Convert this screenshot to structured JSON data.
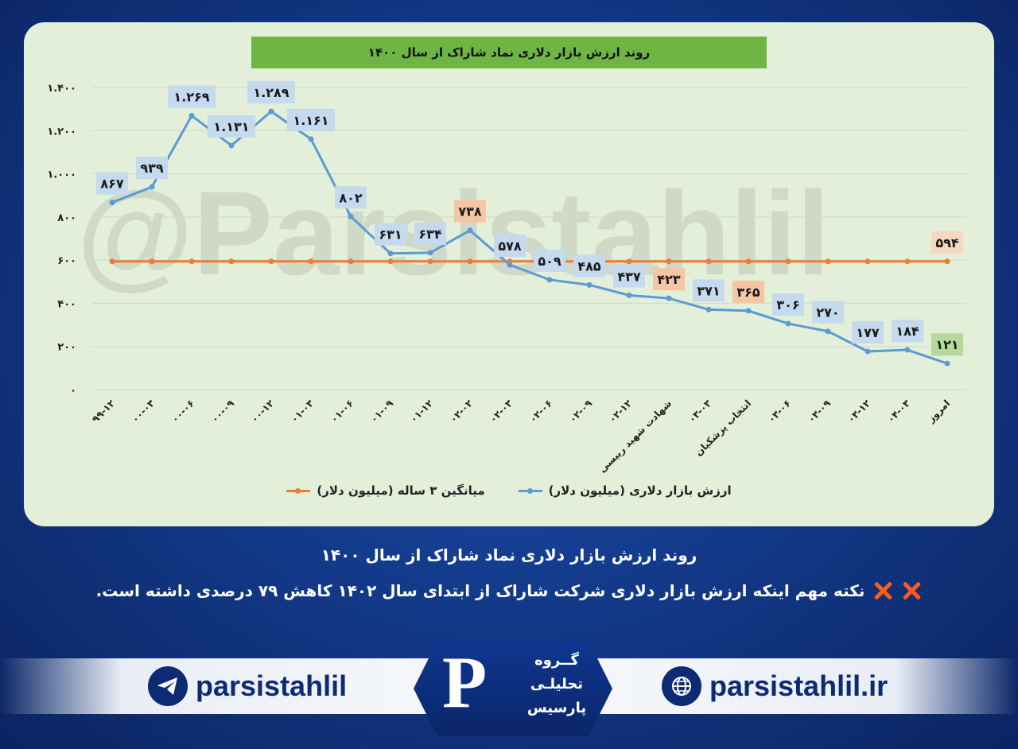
{
  "chart_data": {
    "type": "line",
    "title": "روند ارزش بازار دلاری نماد شاراک از سال ۱۴۰۰",
    "ylim": [
      0,
      1400
    ],
    "y_ticks": [
      0,
      200,
      400,
      600,
      800,
      1000,
      1200,
      1400
    ],
    "y_tick_labels": [
      "۰",
      "۲۰۰",
      "۴۰۰",
      "۶۰۰",
      "۸۰۰",
      "۱.۰۰۰",
      "۱.۲۰۰",
      "۱.۴۰۰"
    ],
    "grid": true,
    "legend_position": "bottom",
    "categories": [
      "۹۹-۱۲",
      "۰۰-۰۳",
      "۰۰-۰۶",
      "۰۰-۰۹",
      "۰۰-۱۲",
      "۰۱-۰۳",
      "۰۱-۰۶",
      "۰۱-۰۹",
      "۰۱-۱۲",
      "۰۲-۰۲",
      "۰۲-۰۳",
      "۰۲-۰۶",
      "۰۲-۰۹",
      "۰۲-۱۲",
      "شهادت شهید رییسی",
      "۰۳-۰۳",
      "انتخاب پزشکیان",
      "۰۳-۰۶",
      "۰۳-۰۹",
      "۰۳-۱۲",
      "۰۴-۰۳",
      "امروز"
    ],
    "series": [
      {
        "name": "ارزش بازار دلاری (میلیون دلار)",
        "color": "#5b9bd5",
        "values": [
          867,
          939,
          1269,
          1131,
          1289,
          1161,
          802,
          631,
          634,
          738,
          578,
          509,
          485,
          437,
          423,
          371,
          365,
          306,
          270,
          177,
          184,
          121
        ],
        "labels": [
          "۸۶۷",
          "۹۳۹",
          "۱.۲۶۹",
          "۱.۱۳۱",
          "۱.۲۸۹",
          "۱.۱۶۱",
          "۸۰۲",
          "۶۳۱",
          "۶۳۴",
          "۷۳۸",
          "۵۷۸",
          "۵۰۹",
          "۴۸۵",
          "۴۳۷",
          "۴۲۳",
          "۳۷۱",
          "۳۶۵",
          "۳۰۶",
          "۲۷۰",
          "۱۷۷",
          "۱۸۴",
          "۱۲۱"
        ]
      },
      {
        "name": "میانگین ۳ ساله (میلیون دلار)",
        "color": "#ed7d31",
        "values": [
          594,
          594,
          594,
          594,
          594,
          594,
          594,
          594,
          594,
          594,
          594,
          594,
          594,
          594,
          594,
          594,
          594,
          594,
          594,
          594,
          594,
          594
        ],
        "end_label": "۵۹۴"
      }
    ]
  },
  "watermark": "@Parsistahlil",
  "caption_title": "روند ارزش بازار دلاری نماد شاراک از سال ۱۴۰۰",
  "caption_note": "نکته مهم اینکه ارزش بازار دلاری شرکت  شاراک از ابتدای سال ۱۴۰۲ کاهش ۷۹ درصدی داشته است.",
  "footer": {
    "telegram_handle": "parsistahlil",
    "website": "parsistahlil.ir",
    "logo_line1": "گــروه",
    "logo_line2": "تحلیلـی",
    "logo_line3": "پارسیس",
    "logo_letter": "P"
  }
}
